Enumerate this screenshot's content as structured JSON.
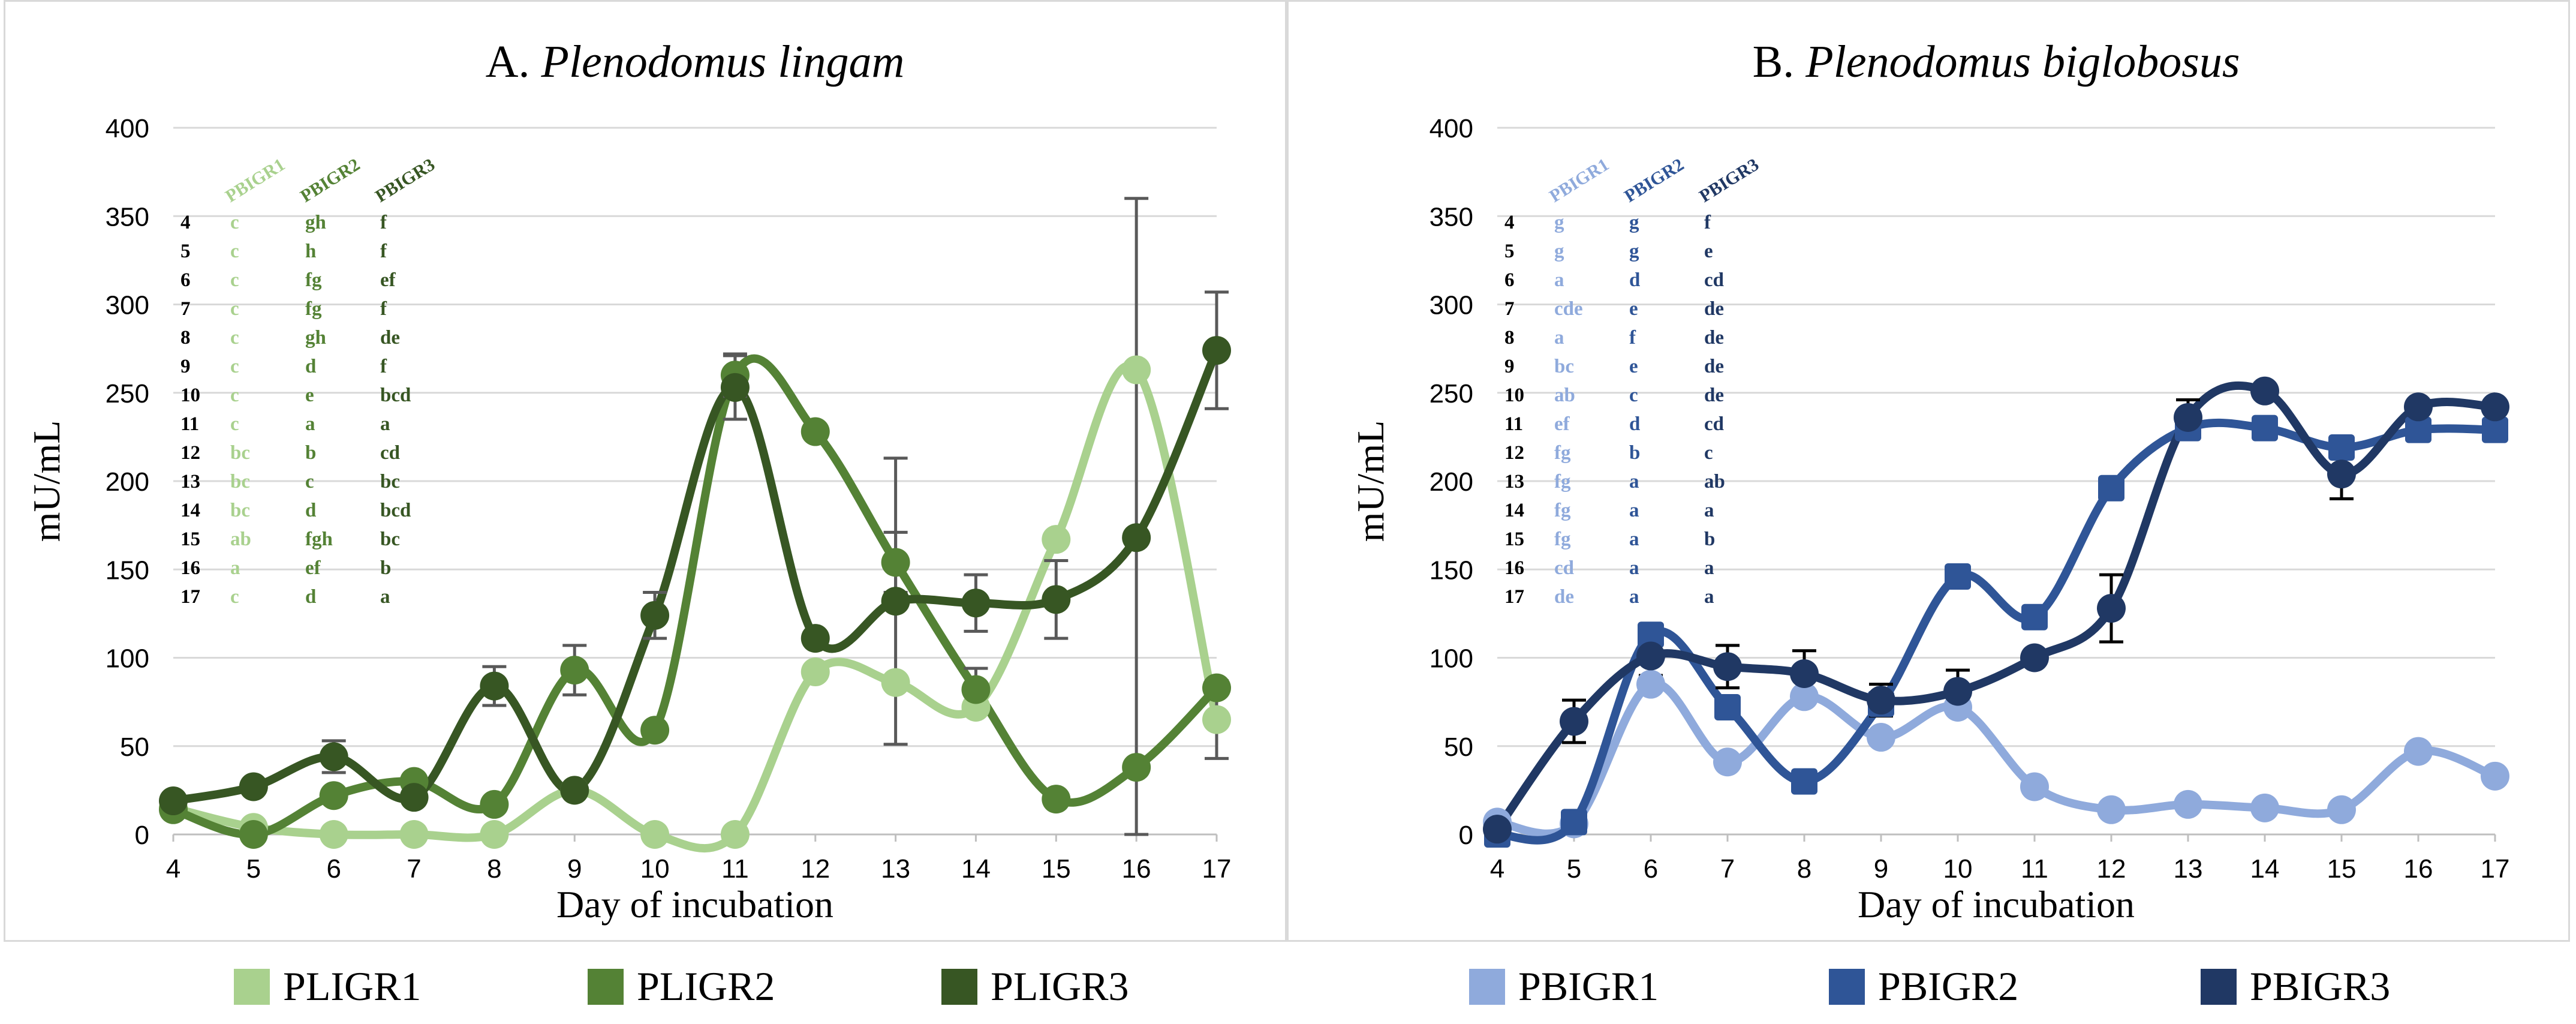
{
  "chart_data": [
    {
      "type": "line",
      "title_prefix": "A.",
      "title_species": "Plenodomus lingam",
      "xlabel": "Day of incubation",
      "ylabel": "mU/mL",
      "ylim": [
        0,
        400
      ],
      "yticks": [
        0,
        50,
        100,
        150,
        200,
        250,
        300,
        350,
        400
      ],
      "x": [
        4,
        5,
        6,
        7,
        8,
        9,
        10,
        11,
        12,
        13,
        14,
        15,
        16,
        17
      ],
      "grid": true,
      "legend": "bottom",
      "series": [
        {
          "name": "PLIGR1",
          "color": "#a9d18e",
          "values": [
            15,
            4,
            0,
            0,
            0,
            25,
            0,
            0,
            92,
            86,
            72,
            167,
            263,
            65
          ],
          "errors": [
            0,
            0,
            0,
            0,
            0,
            0,
            0,
            0,
            0,
            0,
            0,
            0,
            0,
            22
          ]
        },
        {
          "name": "PLIGR2",
          "color": "#548235",
          "values": [
            14,
            0,
            22,
            30,
            17,
            93,
            59,
            260,
            228,
            154,
            82,
            20,
            38,
            83
          ],
          "errors": [
            0,
            0,
            0,
            0,
            0,
            14,
            0,
            12,
            0,
            17,
            12,
            0,
            0,
            0
          ]
        },
        {
          "name": "PLIGR3",
          "color": "#375623",
          "values": [
            19,
            27,
            44,
            21,
            84,
            25,
            124,
            253,
            111,
            132,
            131,
            133,
            168,
            274
          ],
          "errors": [
            0,
            0,
            9,
            0,
            11,
            0,
            13,
            18,
            0,
            81,
            16,
            22,
            192,
            33
          ]
        }
      ],
      "significance_table": {
        "headers": [
          "PBIGR1",
          "PBIGR2",
          "PBIGR3"
        ],
        "header_colors": [
          "#a9d18e",
          "#548235",
          "#375623"
        ],
        "rows": [
          {
            "day": "4",
            "v": [
              "c",
              "gh",
              "f"
            ]
          },
          {
            "day": "5",
            "v": [
              "c",
              "h",
              "f"
            ]
          },
          {
            "day": "6",
            "v": [
              "c",
              "fg",
              "ef"
            ]
          },
          {
            "day": "7",
            "v": [
              "c",
              "fg",
              "f"
            ]
          },
          {
            "day": "8",
            "v": [
              "c",
              "gh",
              "de"
            ]
          },
          {
            "day": "9",
            "v": [
              "c",
              "d",
              "f"
            ]
          },
          {
            "day": "10",
            "v": [
              "c",
              "e",
              "bcd"
            ]
          },
          {
            "day": "11",
            "v": [
              "c",
              "a",
              "a"
            ]
          },
          {
            "day": "12",
            "v": [
              "bc",
              "b",
              "cd"
            ]
          },
          {
            "day": "13",
            "v": [
              "bc",
              "c",
              "bc"
            ]
          },
          {
            "day": "14",
            "v": [
              "bc",
              "d",
              "bcd"
            ]
          },
          {
            "day": "15",
            "v": [
              "ab",
              "fgh",
              "bc"
            ]
          },
          {
            "day": "16",
            "v": [
              "a",
              "ef",
              "b"
            ]
          },
          {
            "day": "17",
            "v": [
              "c",
              "d",
              "a"
            ]
          }
        ]
      }
    },
    {
      "type": "line",
      "title_prefix": "B.",
      "title_species": "Plenodomus biglobosus",
      "xlabel": "Day of incubation",
      "ylabel": "mU/mL",
      "ylim": [
        0,
        400
      ],
      "yticks": [
        0,
        50,
        100,
        150,
        200,
        250,
        300,
        350,
        400
      ],
      "x": [
        4,
        5,
        6,
        7,
        8,
        9,
        10,
        11,
        12,
        13,
        14,
        15,
        16,
        17
      ],
      "grid": true,
      "legend": "bottom",
      "series": [
        {
          "name": "PBIGR1",
          "color": "#8faadc",
          "values": [
            7,
            6,
            85,
            41,
            78,
            55,
            72,
            27,
            14,
            17,
            15,
            14,
            47,
            33
          ],
          "errors": [
            0,
            0,
            0,
            0,
            0,
            0,
            0,
            0,
            0,
            0,
            0,
            0,
            0,
            0
          ]
        },
        {
          "name": "PBIGR2",
          "color": "#2f5597",
          "values": [
            0,
            7,
            113,
            72,
            30,
            74,
            146,
            123,
            196,
            230,
            230,
            219,
            229,
            229
          ],
          "errors": [
            0,
            0,
            0,
            0,
            0,
            0,
            0,
            0,
            6,
            0,
            0,
            0,
            0,
            0
          ]
        },
        {
          "name": "PBIGR3",
          "color": "#203864",
          "values": [
            3,
            64,
            101,
            95,
            91,
            76,
            81,
            100,
            128,
            236,
            251,
            204,
            242,
            242
          ],
          "errors": [
            0,
            12,
            11,
            12,
            13,
            9,
            12,
            0,
            19,
            10,
            0,
            14,
            0,
            0
          ]
        }
      ],
      "significance_table": {
        "headers": [
          "PBIGR1",
          "PBIGR2",
          "PBIGR3"
        ],
        "header_colors": [
          "#8faadc",
          "#2f5597",
          "#203864"
        ],
        "rows": [
          {
            "day": "4",
            "v": [
              "g",
              "g",
              "f"
            ]
          },
          {
            "day": "5",
            "v": [
              "g",
              "g",
              "e"
            ]
          },
          {
            "day": "6",
            "v": [
              "a",
              "d",
              "cd"
            ]
          },
          {
            "day": "7",
            "v": [
              "cde",
              "e",
              "de"
            ]
          },
          {
            "day": "8",
            "v": [
              "a",
              "f",
              "de"
            ]
          },
          {
            "day": "9",
            "v": [
              "bc",
              "e",
              "de"
            ]
          },
          {
            "day": "10",
            "v": [
              "ab",
              "c",
              "de"
            ]
          },
          {
            "day": "11",
            "v": [
              "ef",
              "d",
              "cd"
            ]
          },
          {
            "day": "12",
            "v": [
              "fg",
              "b",
              "c"
            ]
          },
          {
            "day": "13",
            "v": [
              "fg",
              "a",
              "ab"
            ]
          },
          {
            "day": "14",
            "v": [
              "fg",
              "a",
              "a"
            ]
          },
          {
            "day": "15",
            "v": [
              "fg",
              "a",
              "b"
            ]
          },
          {
            "day": "16",
            "v": [
              "cd",
              "a",
              "a"
            ]
          },
          {
            "day": "17",
            "v": [
              "de",
              "a",
              "a"
            ]
          }
        ]
      }
    }
  ]
}
